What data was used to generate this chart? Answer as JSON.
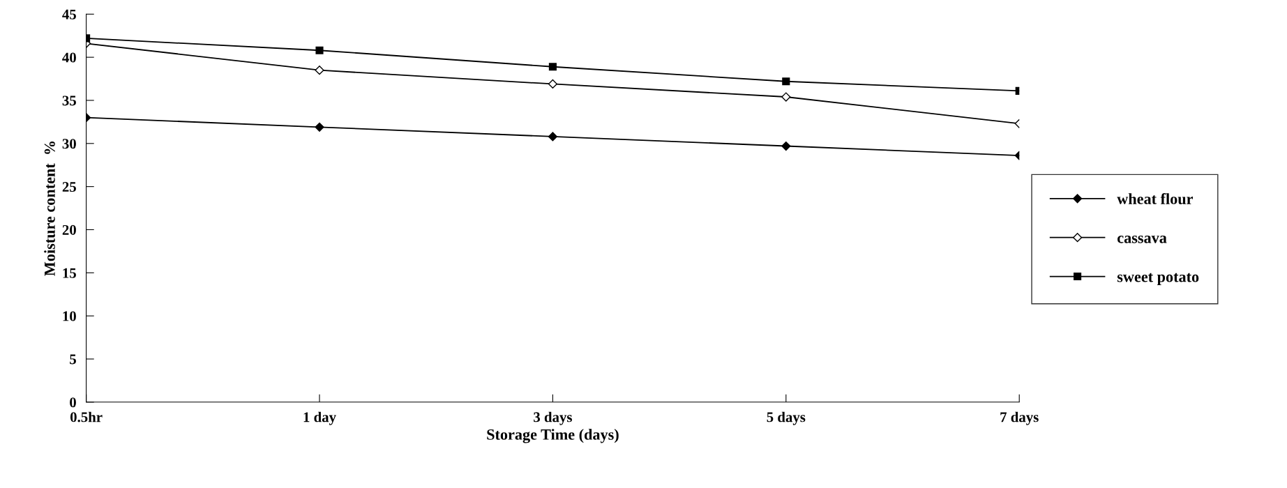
{
  "chart_data": {
    "type": "line",
    "xlabel": "Storage Time (days)",
    "ylabel": "Moisture content  %",
    "categories": [
      "0.5hr",
      "1 day",
      "3 days",
      "5 days",
      "7 days"
    ],
    "series": [
      {
        "name": "wheat flour",
        "color": "#000000",
        "marker": "diamond",
        "values": [
          33.0,
          31.9,
          30.8,
          29.7,
          28.6
        ]
      },
      {
        "name": "cassava",
        "color": "#000000",
        "marker": "diamond",
        "values": [
          41.6,
          38.5,
          36.9,
          35.4,
          32.3
        ]
      },
      {
        "name": "sweet potato",
        "color": "#000000",
        "marker": "square",
        "values": [
          42.2,
          40.8,
          38.9,
          37.2,
          36.1
        ]
      }
    ],
    "ylim": [
      0,
      45
    ],
    "yticks": [
      0,
      5,
      10,
      15,
      20,
      25,
      30,
      35,
      40,
      45
    ],
    "grid": false,
    "legend": "right",
    "line_style": "solid"
  }
}
